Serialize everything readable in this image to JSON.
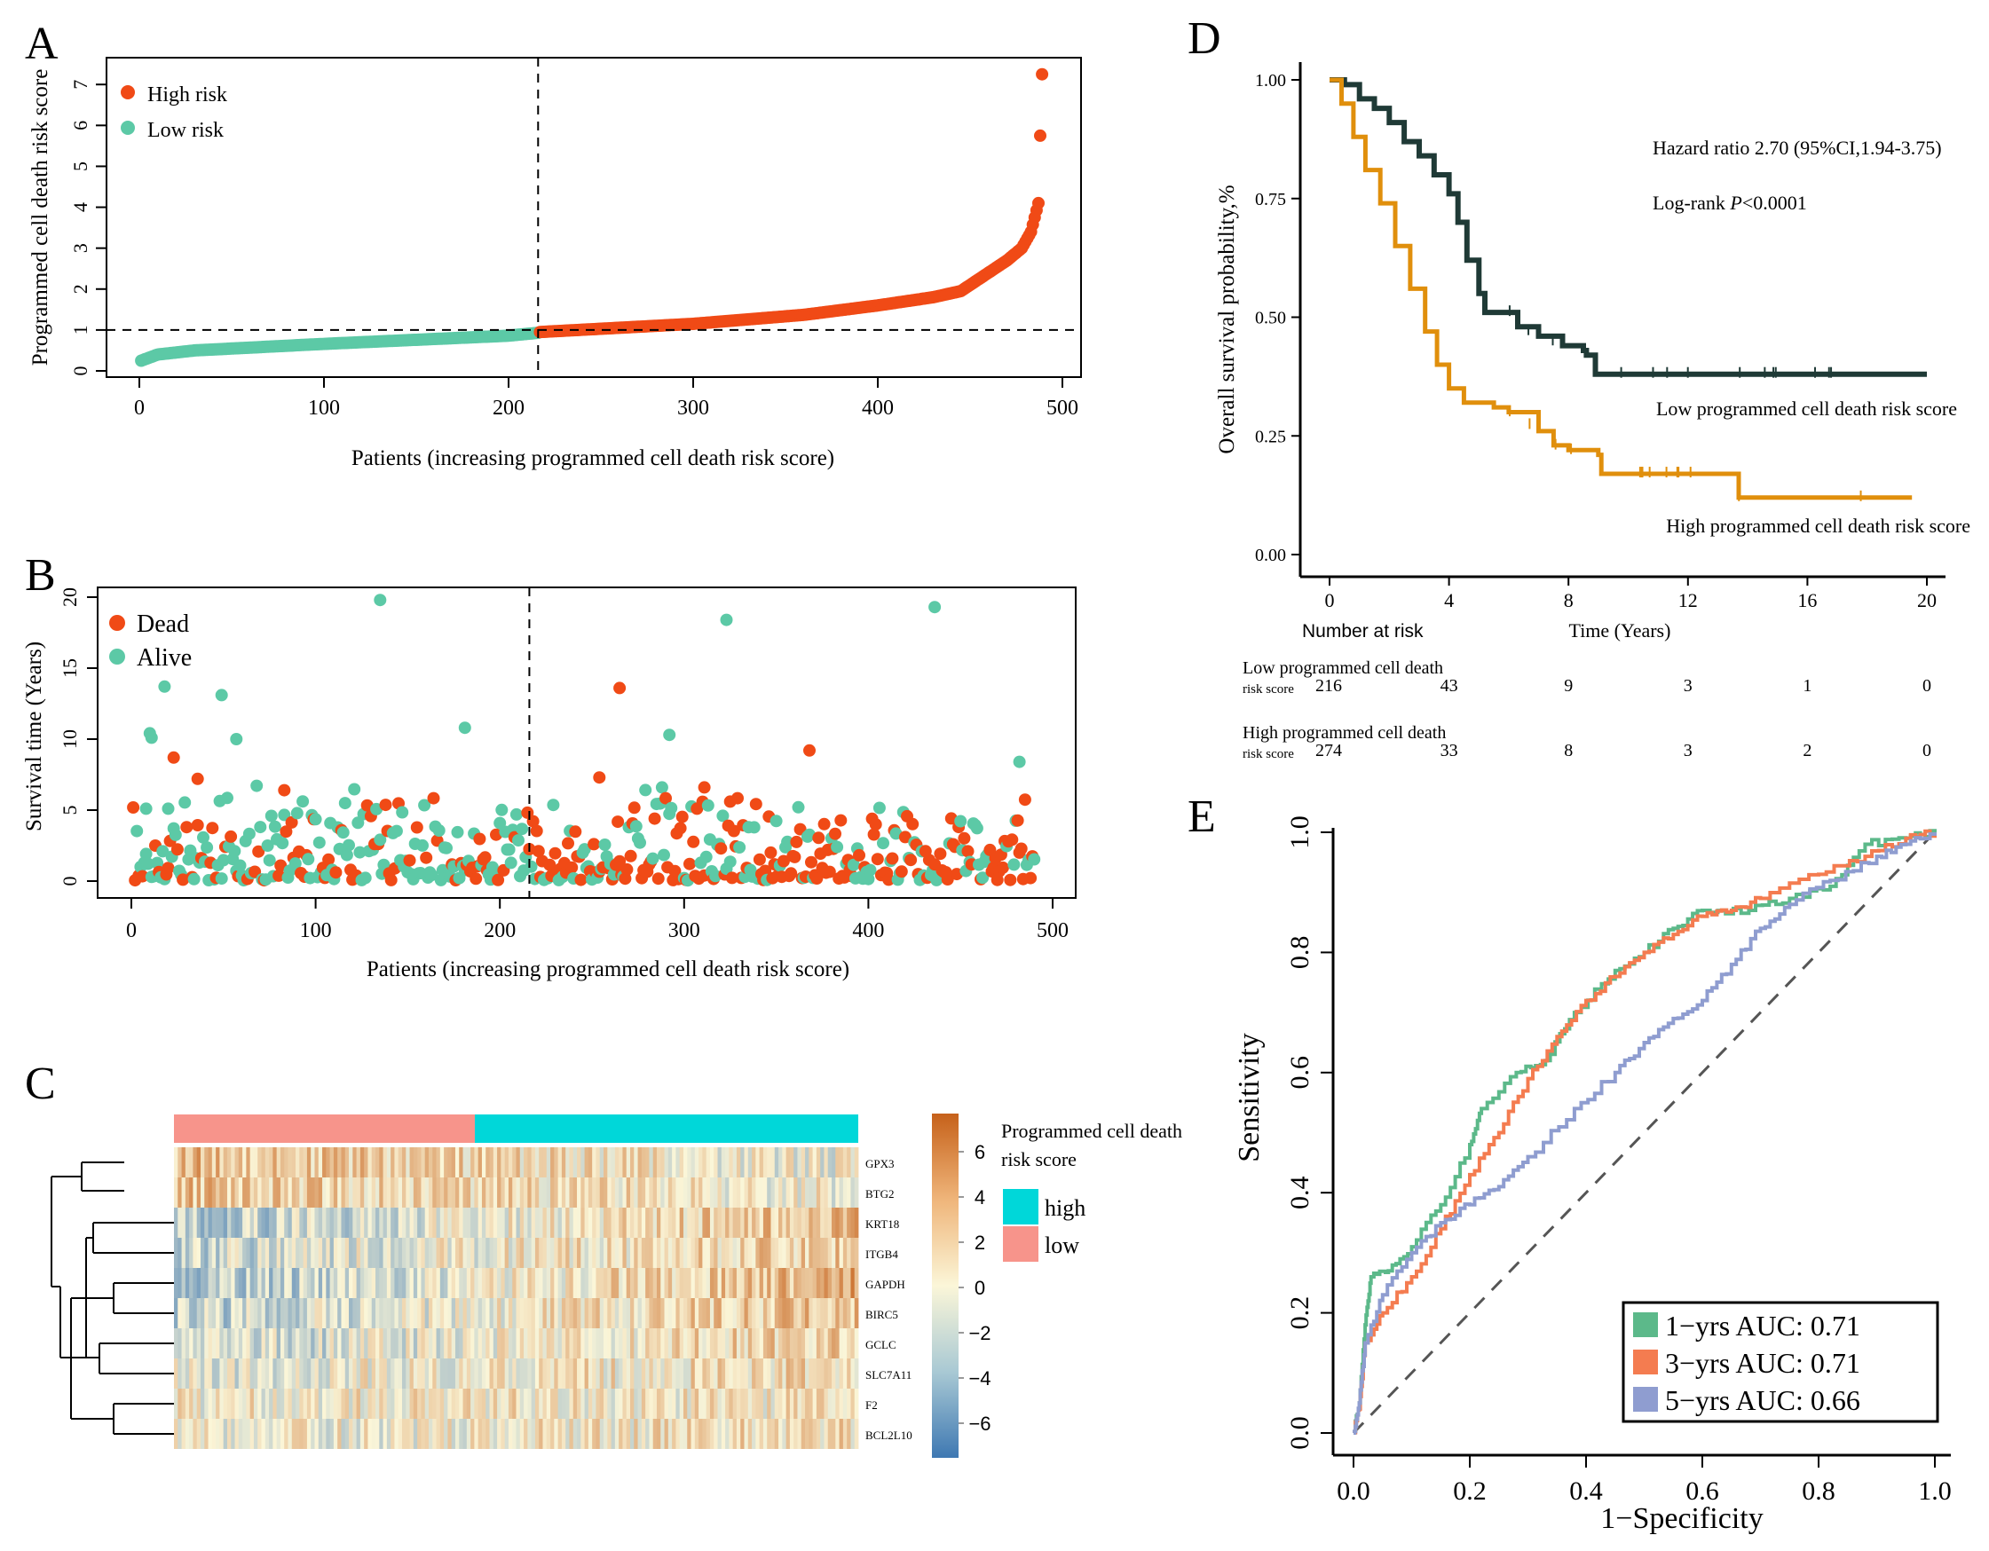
{
  "panels": {
    "A": "A",
    "B": "B",
    "C": "C",
    "D": "D",
    "E": "E"
  },
  "colors": {
    "high": "#f04a16",
    "low": "#5cc9a6",
    "dead": "#f04a16",
    "alive": "#5cc9a6",
    "km_low": "#1f3a36",
    "km_high": "#e08f0c",
    "roc1": "#5cb98a",
    "roc3": "#f47c50",
    "roc5": "#8f9dd0",
    "heat_low_bar": "#f7948b",
    "heat_high_bar": "#00d7d9"
  },
  "chart_data": [
    {
      "id": "A",
      "type": "scatter",
      "ylabel": "Programmed cell death risk score",
      "xlabel": "Patients (increasing programmed cell death risk score)",
      "xticks": [
        "0",
        "100",
        "200",
        "300",
        "400",
        "500"
      ],
      "yticks": [
        "0",
        "1",
        "2",
        "3",
        "4",
        "5",
        "6",
        "7"
      ],
      "xlim": [
        0,
        500
      ],
      "ylim": [
        0,
        7.2
      ],
      "cutoff_x": 216,
      "cutoff_y": 1,
      "legend": [
        {
          "label": "High risk",
          "key": "high"
        },
        {
          "label": "Low risk",
          "key": "low"
        }
      ],
      "n_low": 216,
      "n_high": 274,
      "curve": [
        [
          1,
          0.25
        ],
        [
          10,
          0.4
        ],
        [
          30,
          0.5
        ],
        [
          100,
          0.66
        ],
        [
          200,
          0.86
        ],
        [
          216,
          0.93
        ],
        [
          217,
          0.95
        ],
        [
          300,
          1.15
        ],
        [
          360,
          1.37
        ],
        [
          400,
          1.6
        ],
        [
          430,
          1.8
        ],
        [
          445,
          1.95
        ],
        [
          460,
          2.4
        ],
        [
          470,
          2.7
        ],
        [
          478,
          3.0
        ],
        [
          483,
          3.4
        ],
        [
          487,
          4.1
        ]
      ],
      "outliers": [
        [
          488,
          5.75
        ],
        [
          489,
          7.25
        ]
      ]
    },
    {
      "id": "B",
      "type": "scatter",
      "ylabel": "Survival time (Years)",
      "xlabel": "Patients (increasing programmed cell death risk score)",
      "xticks": [
        "0",
        "100",
        "200",
        "300",
        "400",
        "500"
      ],
      "yticks": [
        "0",
        "5",
        "10",
        "15",
        "20"
      ],
      "xlim": [
        0,
        500
      ],
      "ylim": [
        0,
        20
      ],
      "cutoff_x": 216,
      "legend": [
        {
          "label": "Dead",
          "key": "dead"
        },
        {
          "label": "Alive",
          "key": "alive"
        }
      ],
      "highlights_alive": [
        [
          135,
          19.8
        ],
        [
          323,
          18.4
        ],
        [
          436,
          19.3
        ],
        [
          18,
          13.7
        ],
        [
          49,
          13.1
        ],
        [
          181,
          10.8
        ],
        [
          11,
          10.1
        ],
        [
          57,
          10.0
        ],
        [
          292,
          10.3
        ],
        [
          482,
          8.4
        ],
        [
          8,
          5.1
        ],
        [
          20,
          5.1
        ]
      ],
      "highlights_dead": [
        [
          265,
          13.6
        ],
        [
          23,
          8.7
        ],
        [
          36,
          7.2
        ],
        [
          254,
          7.3
        ],
        [
          368,
          9.2
        ],
        [
          311,
          6.6
        ],
        [
          325,
          5.6
        ],
        [
          83,
          6.4
        ]
      ]
    },
    {
      "id": "C",
      "type": "heatmap",
      "genes": [
        "GPX3",
        "BTG2",
        "KRT18",
        "ITGB4",
        "GAPDH",
        "BIRC5",
        "GCLC",
        "SLC7A11",
        "F2",
        "BCL2L10"
      ],
      "legend_title": "Programmed cell death risk score",
      "legend_items": [
        {
          "label": "high",
          "key": "heat_high_bar"
        },
        {
          "label": "low",
          "key": "heat_low_bar"
        }
      ],
      "scale_ticks": [
        "6",
        "4",
        "2",
        "0",
        "−2",
        "−4",
        "−6"
      ],
      "low_fraction": 0.44
    },
    {
      "id": "D",
      "type": "line",
      "ylabel": "Overall survival probability,%",
      "xlabel": "Time (Years)",
      "xticks": [
        "0",
        "4",
        "8",
        "12",
        "16",
        "20"
      ],
      "yticks": [
        "0.00",
        "0.25",
        "0.50",
        "0.75",
        "1.00"
      ],
      "xlim": [
        0,
        20
      ],
      "ylim": [
        0,
        1
      ],
      "annotation_hr": "Hazard ratio 2.70 (95%CI,1.94-3.75)",
      "annotation_p_prefix": "Log-rank ",
      "annotation_p_var": "P",
      "annotation_p_suffix": "<0.0001",
      "series": [
        {
          "name": "Low programmed cell death risk score",
          "key": "km_low",
          "points": [
            [
              0,
              1
            ],
            [
              0.5,
              0.99
            ],
            [
              1,
              0.96
            ],
            [
              1.5,
              0.94
            ],
            [
              2,
              0.91
            ],
            [
              2.5,
              0.87
            ],
            [
              3,
              0.84
            ],
            [
              3.5,
              0.8
            ],
            [
              4,
              0.76
            ],
            [
              4.3,
              0.7
            ],
            [
              4.6,
              0.62
            ],
            [
              5,
              0.55
            ],
            [
              5.2,
              0.51
            ],
            [
              6.2,
              0.51
            ],
            [
              6.3,
              0.48
            ],
            [
              7,
              0.46
            ],
            [
              7.8,
              0.44
            ],
            [
              8.5,
              0.43
            ],
            [
              8.6,
              0.42
            ],
            [
              8.9,
              0.38
            ],
            [
              16,
              0.38
            ],
            [
              20,
              0.38
            ]
          ]
        },
        {
          "name": "High programmed cell death risk score",
          "key": "km_high",
          "points": [
            [
              0,
              1
            ],
            [
              0.4,
              0.95
            ],
            [
              0.8,
              0.88
            ],
            [
              1.2,
              0.81
            ],
            [
              1.7,
              0.74
            ],
            [
              2.2,
              0.65
            ],
            [
              2.7,
              0.56
            ],
            [
              3.2,
              0.47
            ],
            [
              3.6,
              0.4
            ],
            [
              4,
              0.35
            ],
            [
              4.5,
              0.32
            ],
            [
              5.5,
              0.31
            ],
            [
              6,
              0.3
            ],
            [
              7,
              0.26
            ],
            [
              7.5,
              0.23
            ],
            [
              8,
              0.22
            ],
            [
              9,
              0.21
            ],
            [
              9.1,
              0.17
            ],
            [
              13.6,
              0.17
            ],
            [
              13.7,
              0.12
            ],
            [
              19.5,
              0.12
            ]
          ]
        }
      ],
      "risk_table": {
        "title": "Number at risk",
        "rows": [
          {
            "label_line1": "Low programmed cell death",
            "label_line2": "risk score",
            "counts": [
              "216",
              "43",
              "9",
              "3",
              "1",
              "0"
            ]
          },
          {
            "label_line1": "High programmed cell death",
            "label_line2": "risk score",
            "counts": [
              "274",
              "33",
              "8",
              "3",
              "2",
              "0"
            ]
          }
        ]
      }
    },
    {
      "id": "E",
      "type": "line",
      "ylabel": "Sensitivity",
      "xlabel": "1−Specificity",
      "xticks": [
        "0.0",
        "0.2",
        "0.4",
        "0.6",
        "0.8",
        "1.0"
      ],
      "yticks": [
        "0.0",
        "0.2",
        "0.4",
        "0.6",
        "0.8",
        "1.0"
      ],
      "xlim": [
        0,
        1
      ],
      "ylim": [
        0,
        1
      ],
      "series": [
        {
          "name": "1−yrs AUC: 0.71",
          "key": "roc1",
          "points": [
            [
              0,
              0
            ],
            [
              0.01,
              0.05
            ],
            [
              0.02,
              0.18
            ],
            [
              0.03,
              0.26
            ],
            [
              0.06,
              0.27
            ],
            [
              0.1,
              0.31
            ],
            [
              0.15,
              0.38
            ],
            [
              0.2,
              0.48
            ],
            [
              0.22,
              0.54
            ],
            [
              0.28,
              0.6
            ],
            [
              0.33,
              0.62
            ],
            [
              0.38,
              0.7
            ],
            [
              0.45,
              0.77
            ],
            [
              0.5,
              0.8
            ],
            [
              0.55,
              0.84
            ],
            [
              0.6,
              0.87
            ],
            [
              0.68,
              0.87
            ],
            [
              0.75,
              0.89
            ],
            [
              0.82,
              0.91
            ],
            [
              0.88,
              0.98
            ],
            [
              0.95,
              0.99
            ],
            [
              1,
              1
            ]
          ]
        },
        {
          "name": "3−yrs AUC: 0.71",
          "key": "roc3",
          "points": [
            [
              0,
              0
            ],
            [
              0.01,
              0.04
            ],
            [
              0.02,
              0.15
            ],
            [
              0.05,
              0.2
            ],
            [
              0.1,
              0.26
            ],
            [
              0.15,
              0.34
            ],
            [
              0.2,
              0.43
            ],
            [
              0.25,
              0.5
            ],
            [
              0.3,
              0.59
            ],
            [
              0.35,
              0.66
            ],
            [
              0.4,
              0.72
            ],
            [
              0.45,
              0.76
            ],
            [
              0.5,
              0.8
            ],
            [
              0.55,
              0.83
            ],
            [
              0.6,
              0.86
            ],
            [
              0.65,
              0.87
            ],
            [
              0.7,
              0.89
            ],
            [
              0.8,
              0.93
            ],
            [
              0.88,
              0.96
            ],
            [
              0.95,
              0.99
            ],
            [
              1,
              1
            ]
          ]
        },
        {
          "name": "5−yrs AUC: 0.66",
          "key": "roc5",
          "points": [
            [
              0,
              0
            ],
            [
              0.01,
              0.05
            ],
            [
              0.02,
              0.15
            ],
            [
              0.05,
              0.23
            ],
            [
              0.1,
              0.3
            ],
            [
              0.15,
              0.35
            ],
            [
              0.2,
              0.38
            ],
            [
              0.25,
              0.41
            ],
            [
              0.3,
              0.46
            ],
            [
              0.38,
              0.54
            ],
            [
              0.45,
              0.6
            ],
            [
              0.5,
              0.65
            ],
            [
              0.55,
              0.69
            ],
            [
              0.6,
              0.72
            ],
            [
              0.65,
              0.78
            ],
            [
              0.7,
              0.84
            ],
            [
              0.75,
              0.88
            ],
            [
              0.82,
              0.92
            ],
            [
              0.9,
              0.96
            ],
            [
              0.95,
              0.98
            ],
            [
              1,
              1
            ]
          ]
        }
      ]
    }
  ]
}
